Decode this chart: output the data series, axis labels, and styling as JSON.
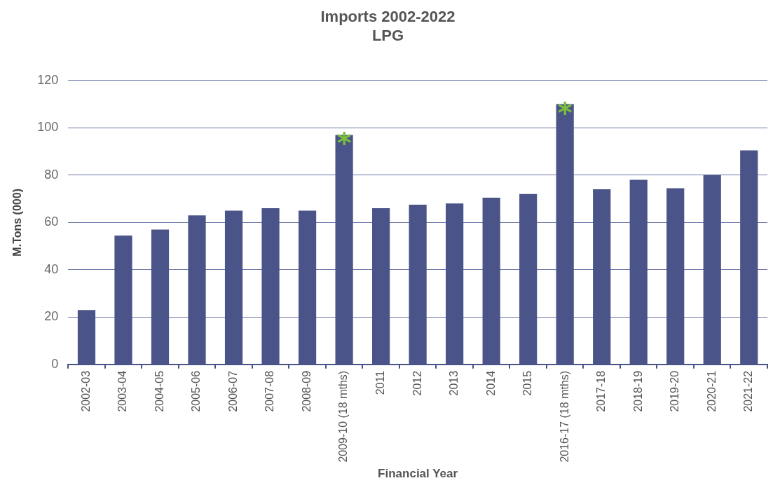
{
  "chart_data": {
    "type": "bar",
    "title": "Imports 2002-2022",
    "subtitle": "LPG",
    "xlabel": "Financial Year",
    "ylabel": "M.Tons (000)",
    "categories": [
      "2002-03",
      "2003-04",
      "2004-05",
      "2005-06",
      "2006-07",
      "2007-08",
      "2008-09",
      "2009-10 (18 mths)",
      "2011",
      "2012",
      "2013",
      "2014",
      "2015",
      "2016-17 (18 mths)",
      "2017-18",
      "2018-19",
      "2019-20",
      "2020-21",
      "2021-22"
    ],
    "values": [
      23,
      54.5,
      57,
      63,
      65,
      66,
      65,
      97,
      66,
      67.5,
      68,
      70.5,
      72,
      110,
      74,
      78,
      74.5,
      80,
      90.5
    ],
    "color": "#4a5488",
    "ylim": [
      0,
      120
    ],
    "yticks": [
      0,
      20,
      40,
      60,
      80,
      100,
      120
    ],
    "grid": "y",
    "legend": false,
    "annotations": [
      {
        "text": "*",
        "x": "2009-10 (18 mths)",
        "y": 97
      },
      {
        "text": "*",
        "x": "2016-17 (18 mths)",
        "y": 110
      }
    ]
  }
}
